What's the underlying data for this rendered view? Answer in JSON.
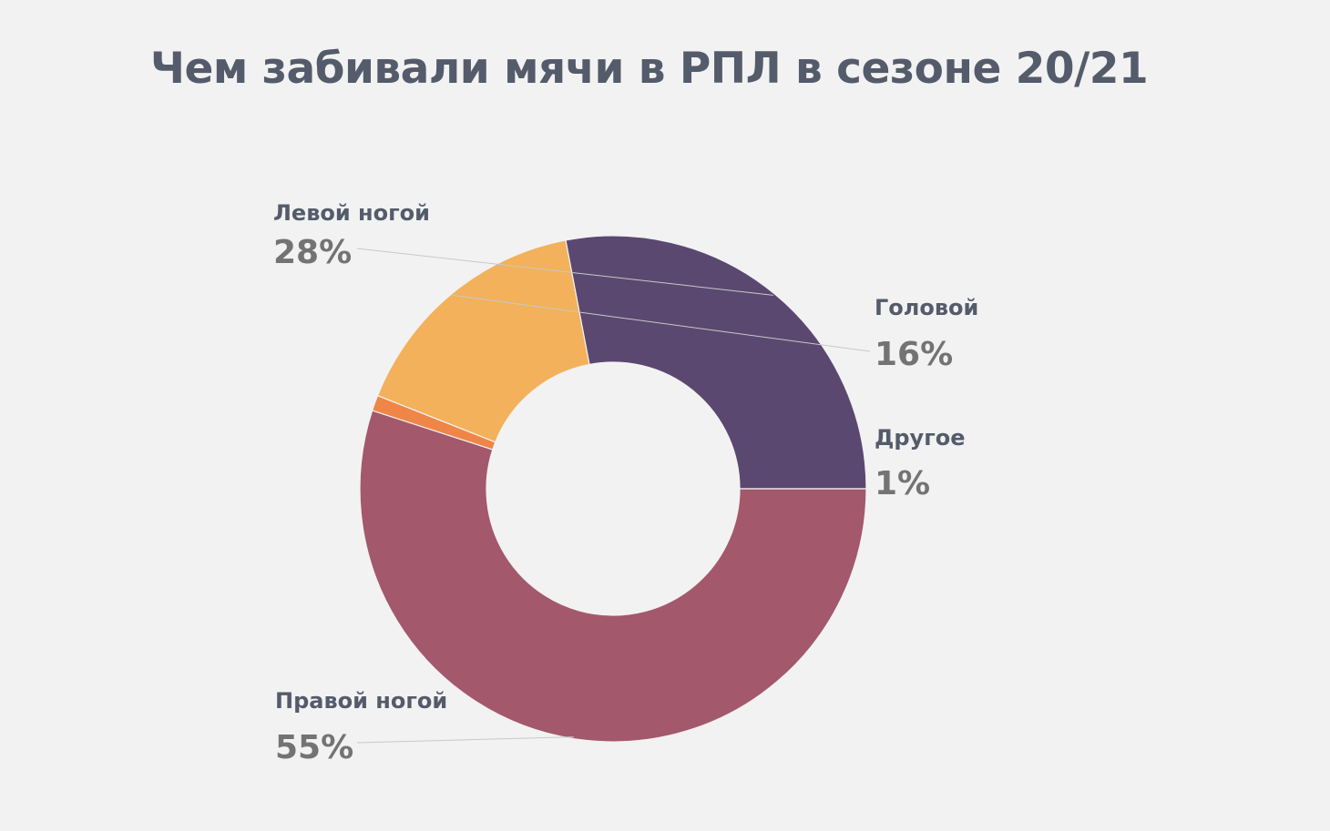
{
  "chart_data": {
    "type": "pie",
    "title": "Чем забивали мячи в РПЛ в сезоне 20/21",
    "donut": true,
    "slices": [
      {
        "label": "Левой ногой",
        "value": 28,
        "value_label": "28%",
        "color": "#5b4870"
      },
      {
        "label": "Головой",
        "value": 16,
        "value_label": "16%",
        "color": "#f2b15a"
      },
      {
        "label": "Другое",
        "value": 1,
        "value_label": "1%",
        "color": "#ef8547"
      },
      {
        "label": "Правой ногой",
        "value": 55,
        "value_label": "55%",
        "color": "#a3586b"
      }
    ]
  }
}
